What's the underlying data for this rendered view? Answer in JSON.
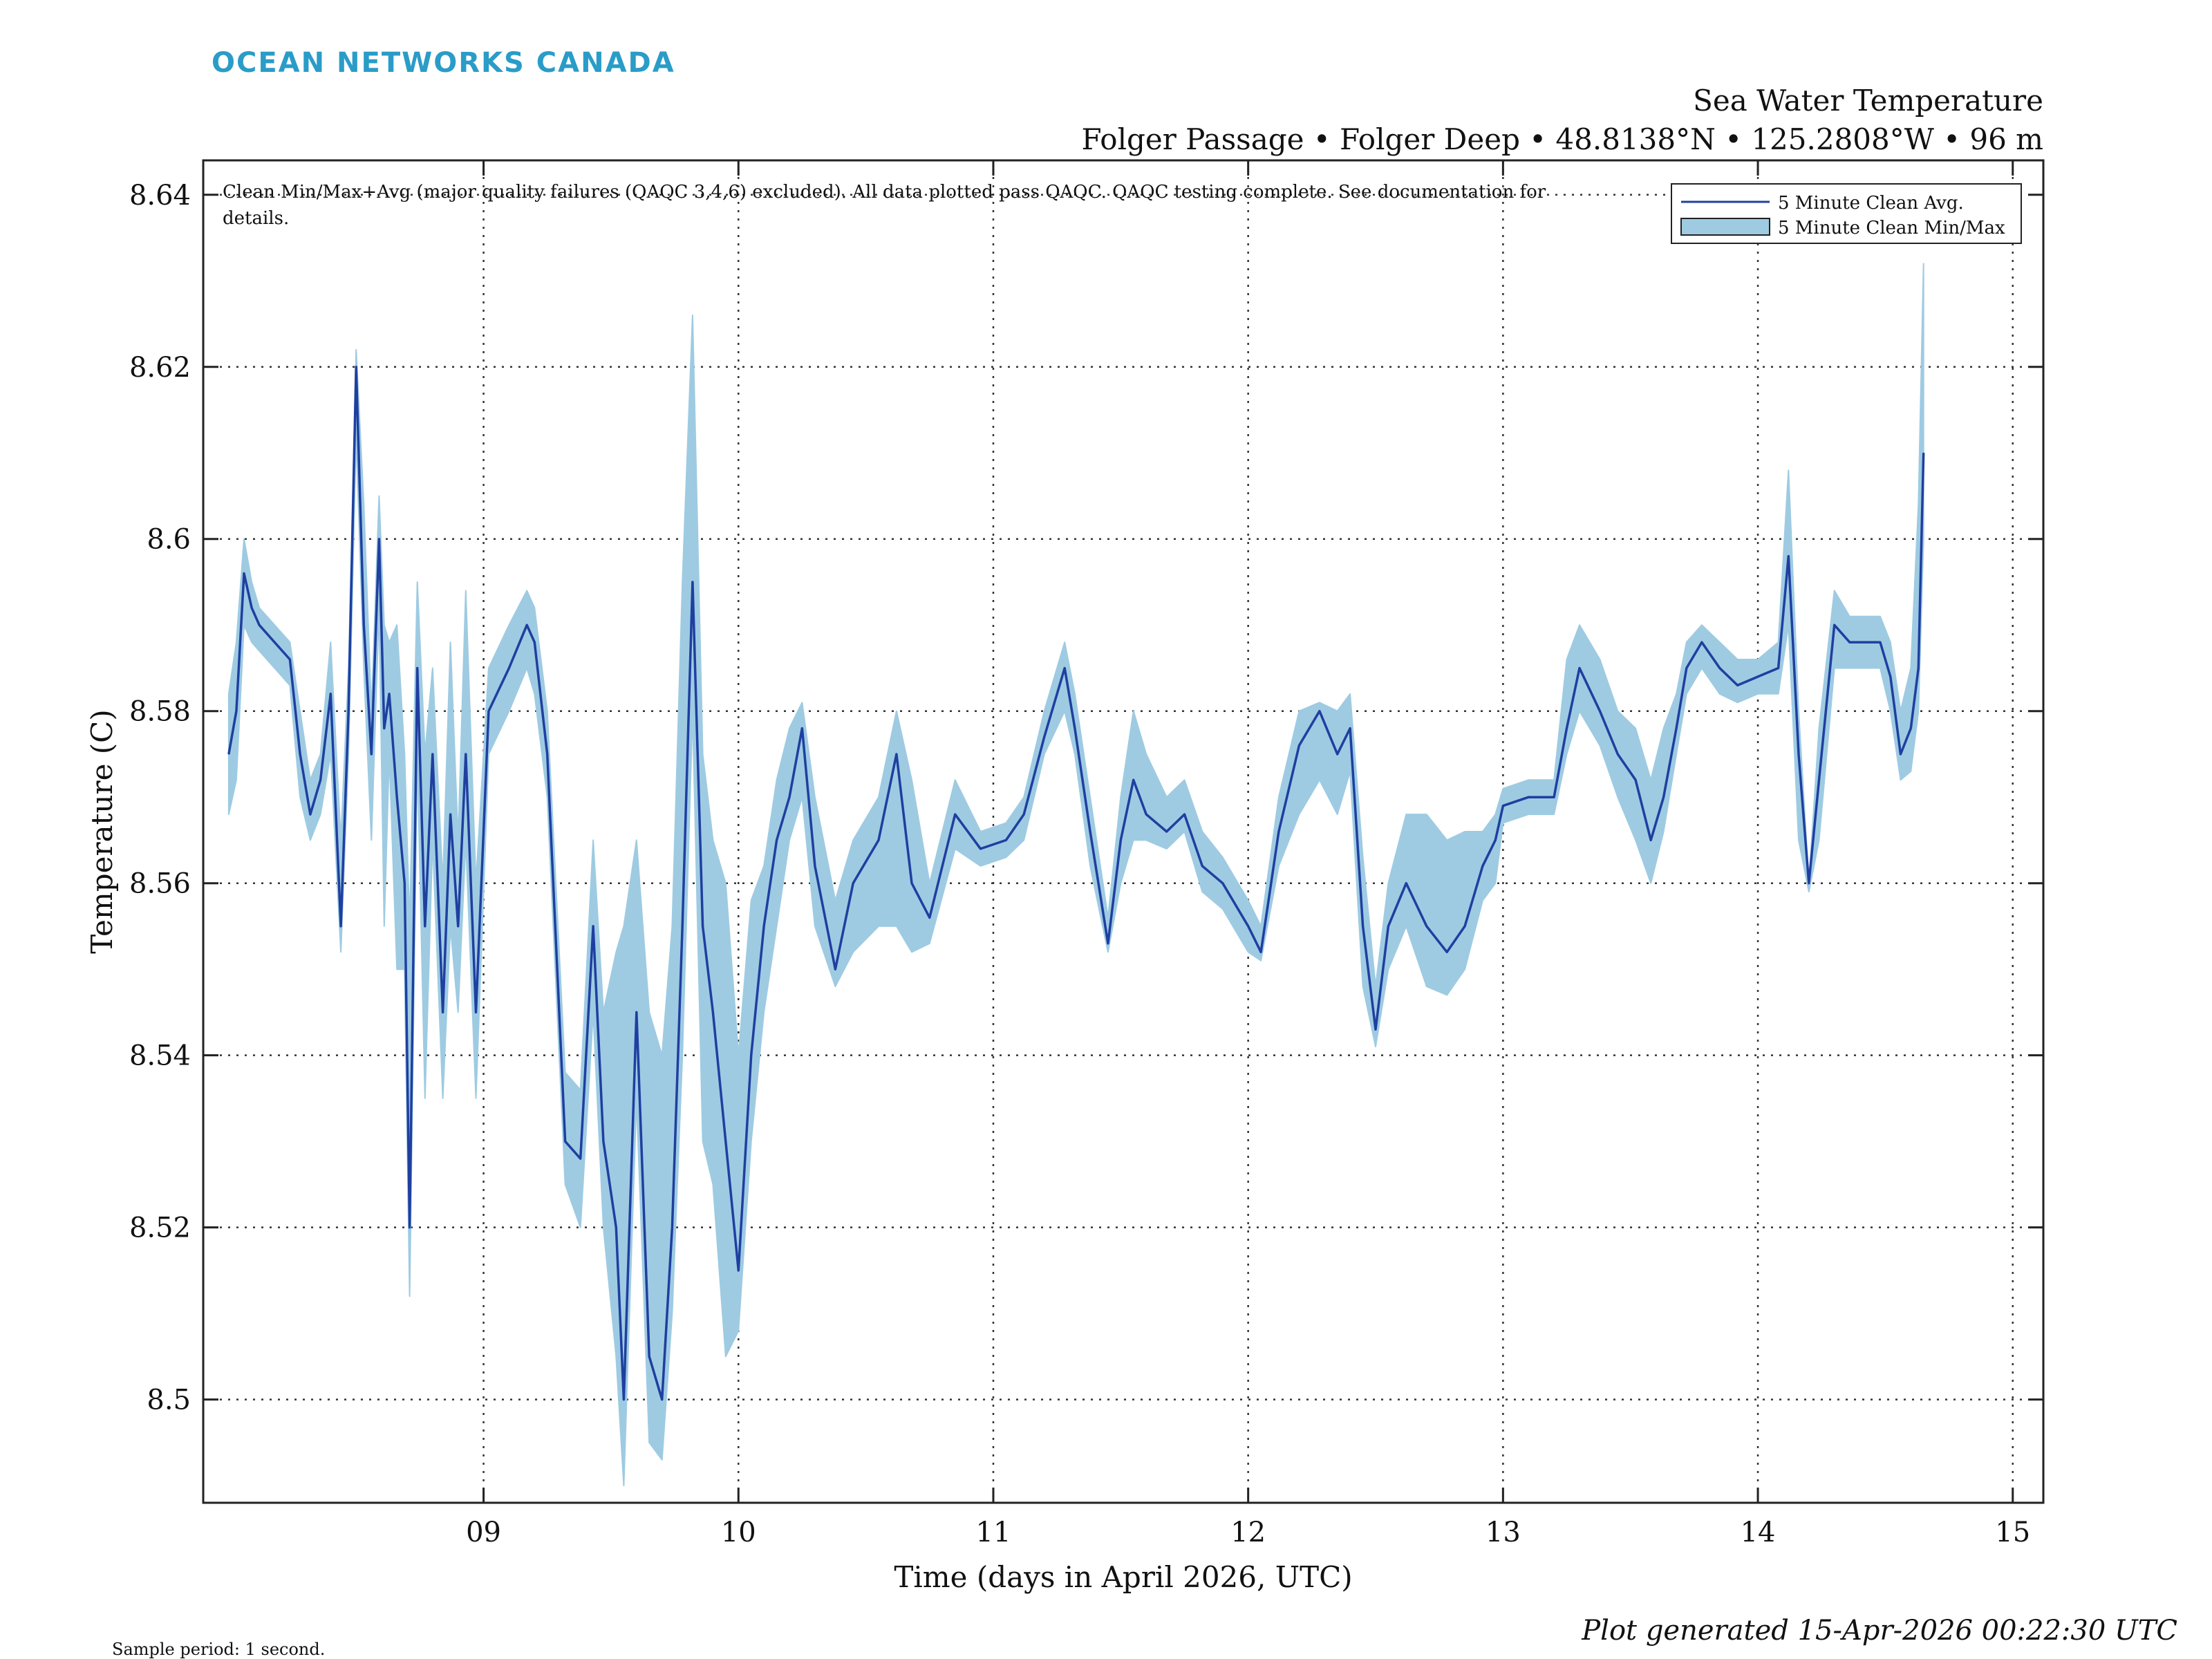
{
  "brand": {
    "logo_text": "OCEAN NETWORKS CANADA",
    "logo_color": "#2a9cc8"
  },
  "header": {
    "title": "Sea Water Temperature",
    "subtitle": "Folger Passage • Folger Deep • 48.8138°N • 125.2808°W • 96 m"
  },
  "annotation": {
    "line1": "Clean Min/Max+Avg (major quality failures (QAQC 3,4,6) excluded). All data plotted pass QAQC. QAQC testing complete. See documentation for",
    "line2": "details."
  },
  "footer": {
    "sample_period": "Sample period: 1 second.",
    "generated": "Plot generated 15-Apr-2026 00:22:30 UTC"
  },
  "colors": {
    "avg_line": "#1f3fa0",
    "minmax_fill": "#9ecbe2",
    "grid": "#333333",
    "axis": "#222222"
  },
  "chart_data": {
    "type": "area",
    "xlabel": "Time (days in April 2026, UTC)",
    "ylabel": "Temperature (C)",
    "xlim": [
      7.9,
      15.12
    ],
    "ylim": [
      8.488,
      8.644
    ],
    "xticks": [
      9,
      10,
      11,
      12,
      13,
      14,
      15
    ],
    "xtick_labels": [
      "09",
      "10",
      "11",
      "12",
      "13",
      "14",
      "15"
    ],
    "yticks": [
      8.5,
      8.52,
      8.54,
      8.56,
      8.58,
      8.6,
      8.62,
      8.64
    ],
    "ytick_labels": [
      "8.5",
      "8.52",
      "8.54",
      "8.56",
      "8.58",
      "8.6",
      "8.62",
      "8.64"
    ],
    "grid": true,
    "legend_position": "top-right",
    "series": [
      {
        "name": "5 Minute Clean Avg.",
        "kind": "line",
        "x": [
          8.0,
          8.03,
          8.06,
          8.09,
          8.12,
          8.18,
          8.24,
          8.28,
          8.32,
          8.36,
          8.4,
          8.44,
          8.47,
          8.5,
          8.53,
          8.56,
          8.59,
          8.61,
          8.63,
          8.66,
          8.69,
          8.71,
          8.74,
          8.77,
          8.8,
          8.84,
          8.87,
          8.9,
          8.93,
          8.97,
          9.02,
          9.1,
          9.17,
          9.2,
          9.25,
          9.32,
          9.38,
          9.43,
          9.47,
          9.52,
          9.55,
          9.6,
          9.65,
          9.7,
          9.74,
          9.78,
          9.82,
          9.86,
          9.9,
          9.95,
          10.0,
          10.05,
          10.1,
          10.15,
          10.2,
          10.25,
          10.3,
          10.38,
          10.45,
          10.55,
          10.62,
          10.68,
          10.75,
          10.85,
          10.95,
          11.05,
          11.12,
          11.2,
          11.28,
          11.32,
          11.38,
          11.45,
          11.5,
          11.55,
          11.6,
          11.68,
          11.75,
          11.82,
          11.9,
          12.0,
          12.05,
          12.12,
          12.2,
          12.28,
          12.35,
          12.4,
          12.45,
          12.5,
          12.55,
          12.62,
          12.7,
          12.78,
          12.85,
          12.92,
          12.97,
          13.0,
          13.1,
          13.2,
          13.25,
          13.3,
          13.38,
          13.45,
          13.52,
          13.58,
          13.63,
          13.68,
          13.72,
          13.78,
          13.85,
          13.92,
          14.0,
          14.08,
          14.12,
          14.16,
          14.2,
          14.24,
          14.3,
          14.36,
          14.42,
          14.48,
          14.52,
          14.56,
          14.6,
          14.63,
          14.65
        ],
        "y": [
          8.575,
          8.58,
          8.596,
          8.592,
          8.59,
          8.588,
          8.586,
          8.575,
          8.568,
          8.572,
          8.582,
          8.555,
          8.58,
          8.62,
          8.59,
          8.575,
          8.6,
          8.578,
          8.582,
          8.57,
          8.56,
          8.52,
          8.585,
          8.555,
          8.575,
          8.545,
          8.568,
          8.555,
          8.575,
          8.545,
          8.58,
          8.585,
          8.59,
          8.588,
          8.575,
          8.53,
          8.528,
          8.555,
          8.53,
          8.52,
          8.5,
          8.545,
          8.505,
          8.5,
          8.52,
          8.555,
          8.595,
          8.555,
          8.545,
          8.53,
          8.515,
          8.54,
          8.555,
          8.565,
          8.57,
          8.578,
          8.562,
          8.55,
          8.56,
          8.565,
          8.575,
          8.56,
          8.556,
          8.568,
          8.564,
          8.565,
          8.568,
          8.577,
          8.585,
          8.578,
          8.566,
          8.553,
          8.565,
          8.572,
          8.568,
          8.566,
          8.568,
          8.562,
          8.56,
          8.555,
          8.552,
          8.566,
          8.576,
          8.58,
          8.575,
          8.578,
          8.555,
          8.543,
          8.555,
          8.56,
          8.555,
          8.552,
          8.555,
          8.562,
          8.565,
          8.569,
          8.57,
          8.57,
          8.578,
          8.585,
          8.58,
          8.575,
          8.572,
          8.565,
          8.57,
          8.578,
          8.585,
          8.588,
          8.585,
          8.583,
          8.584,
          8.585,
          8.598,
          8.575,
          8.56,
          8.572,
          8.59,
          8.588,
          8.588,
          8.588,
          8.584,
          8.575,
          8.578,
          8.585,
          8.61
        ]
      },
      {
        "name": "5 Minute Clean Min/Max",
        "kind": "band",
        "x": [
          8.0,
          8.03,
          8.06,
          8.09,
          8.12,
          8.18,
          8.24,
          8.28,
          8.32,
          8.36,
          8.4,
          8.44,
          8.47,
          8.5,
          8.53,
          8.56,
          8.59,
          8.61,
          8.63,
          8.66,
          8.69,
          8.71,
          8.74,
          8.77,
          8.8,
          8.84,
          8.87,
          8.9,
          8.93,
          8.97,
          9.02,
          9.1,
          9.17,
          9.2,
          9.25,
          9.32,
          9.38,
          9.43,
          9.47,
          9.52,
          9.55,
          9.6,
          9.65,
          9.7,
          9.74,
          9.78,
          9.82,
          9.86,
          9.9,
          9.95,
          10.0,
          10.05,
          10.1,
          10.15,
          10.2,
          10.25,
          10.3,
          10.38,
          10.45,
          10.55,
          10.62,
          10.68,
          10.75,
          10.85,
          10.95,
          11.05,
          11.12,
          11.2,
          11.28,
          11.32,
          11.38,
          11.45,
          11.5,
          11.55,
          11.6,
          11.68,
          11.75,
          11.82,
          11.9,
          12.0,
          12.05,
          12.12,
          12.2,
          12.28,
          12.35,
          12.4,
          12.45,
          12.5,
          12.55,
          12.62,
          12.7,
          12.78,
          12.85,
          12.92,
          12.97,
          13.0,
          13.1,
          13.2,
          13.25,
          13.3,
          13.38,
          13.45,
          13.52,
          13.58,
          13.63,
          13.68,
          13.72,
          13.78,
          13.85,
          13.92,
          14.0,
          14.08,
          14.12,
          14.16,
          14.2,
          14.24,
          14.3,
          14.36,
          14.42,
          14.48,
          14.52,
          14.56,
          14.6,
          14.63,
          14.65
        ],
        "ymin": [
          8.568,
          8.572,
          8.59,
          8.588,
          8.587,
          8.585,
          8.583,
          8.57,
          8.565,
          8.568,
          8.575,
          8.552,
          8.575,
          8.612,
          8.585,
          8.565,
          8.592,
          8.555,
          8.575,
          8.55,
          8.55,
          8.512,
          8.575,
          8.535,
          8.565,
          8.535,
          8.555,
          8.545,
          8.565,
          8.535,
          8.575,
          8.58,
          8.585,
          8.582,
          8.57,
          8.525,
          8.52,
          8.545,
          8.52,
          8.505,
          8.49,
          8.535,
          8.495,
          8.493,
          8.51,
          8.54,
          8.58,
          8.53,
          8.525,
          8.505,
          8.508,
          8.53,
          8.545,
          8.555,
          8.565,
          8.57,
          8.555,
          8.548,
          8.552,
          8.555,
          8.555,
          8.552,
          8.553,
          8.564,
          8.562,
          8.563,
          8.565,
          8.575,
          8.58,
          8.575,
          8.562,
          8.552,
          8.56,
          8.565,
          8.565,
          8.564,
          8.566,
          8.559,
          8.557,
          8.552,
          8.551,
          8.562,
          8.568,
          8.572,
          8.568,
          8.573,
          8.548,
          8.541,
          8.55,
          8.555,
          8.548,
          8.547,
          8.55,
          8.558,
          8.56,
          8.567,
          8.568,
          8.568,
          8.575,
          8.58,
          8.576,
          8.57,
          8.565,
          8.56,
          8.566,
          8.575,
          8.582,
          8.585,
          8.582,
          8.581,
          8.582,
          8.582,
          8.59,
          8.565,
          8.559,
          8.565,
          8.585,
          8.585,
          8.585,
          8.585,
          8.58,
          8.572,
          8.573,
          8.58,
          8.6
        ],
        "ymax": [
          8.582,
          8.588,
          8.6,
          8.595,
          8.592,
          8.59,
          8.588,
          8.58,
          8.572,
          8.575,
          8.588,
          8.565,
          8.585,
          8.622,
          8.604,
          8.58,
          8.605,
          8.59,
          8.588,
          8.59,
          8.575,
          8.555,
          8.595,
          8.575,
          8.585,
          8.56,
          8.588,
          8.565,
          8.594,
          8.56,
          8.585,
          8.59,
          8.594,
          8.592,
          8.58,
          8.538,
          8.536,
          8.565,
          8.545,
          8.552,
          8.555,
          8.565,
          8.545,
          8.54,
          8.555,
          8.595,
          8.626,
          8.575,
          8.565,
          8.56,
          8.54,
          8.558,
          8.562,
          8.572,
          8.578,
          8.581,
          8.57,
          8.558,
          8.565,
          8.57,
          8.58,
          8.572,
          8.56,
          8.572,
          8.566,
          8.567,
          8.57,
          8.58,
          8.588,
          8.582,
          8.57,
          8.556,
          8.57,
          8.58,
          8.575,
          8.57,
          8.572,
          8.566,
          8.563,
          8.558,
          8.555,
          8.57,
          8.58,
          8.581,
          8.58,
          8.582,
          8.563,
          8.548,
          8.56,
          8.568,
          8.568,
          8.565,
          8.566,
          8.566,
          8.568,
          8.571,
          8.572,
          8.572,
          8.586,
          8.59,
          8.586,
          8.58,
          8.578,
          8.572,
          8.578,
          8.582,
          8.588,
          8.59,
          8.588,
          8.586,
          8.586,
          8.588,
          8.608,
          8.58,
          8.56,
          8.578,
          8.594,
          8.591,
          8.591,
          8.591,
          8.588,
          8.58,
          8.585,
          8.604,
          8.632
        ]
      }
    ]
  }
}
